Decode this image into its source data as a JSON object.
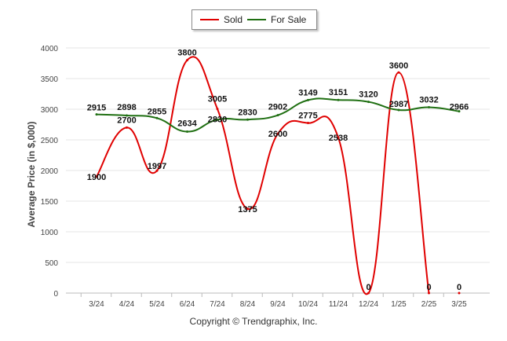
{
  "legend": {
    "sold_label": "Sold",
    "for_sale_label": "For Sale"
  },
  "footer": {
    "copyright": "Copyright © Trendgraphix, Inc."
  },
  "colors": {
    "sold": "#e00000",
    "for_sale": "#1f6f12",
    "grid": "#e6e6e6"
  },
  "chart_data": {
    "type": "line",
    "title": "",
    "xlabel": "",
    "ylabel": "Average Price (in $,000)",
    "ylim": [
      0,
      4000
    ],
    "yticks": [
      0,
      500,
      1000,
      1500,
      2000,
      2500,
      3000,
      3500,
      4000
    ],
    "categories": [
      "3/24",
      "4/24",
      "5/24",
      "6/24",
      "7/24",
      "8/24",
      "9/24",
      "10/24",
      "11/24",
      "12/24",
      "1/25",
      "2/25",
      "3/25"
    ],
    "series": [
      {
        "name": "Sold",
        "values": [
          1900,
          2700,
          1997,
          3800,
          3005,
          1375,
          2600,
          2775,
          2538,
          0,
          3600,
          0,
          0
        ]
      },
      {
        "name": "For Sale",
        "values": [
          2915,
          2898,
          2855,
          2634,
          2830,
          2830,
          2902,
          3149,
          3151,
          3120,
          2987,
          3032,
          2966
        ]
      }
    ],
    "legend_position": "top-center",
    "grid": true
  }
}
